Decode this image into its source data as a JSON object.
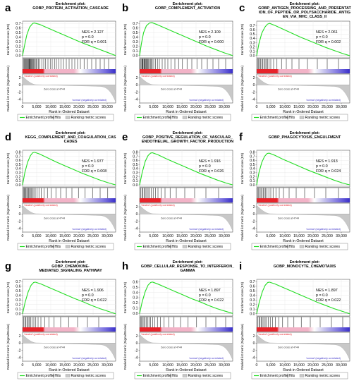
{
  "common": {
    "plot_heading": "Enrichment plot:",
    "es_axis_label": "Enrichment score (ES)",
    "metric_axis_label": "Ranked list metric (Signal2Noise)",
    "x_axis_label": "Rank in Ordered Dataset",
    "legend": [
      "Enrichment profile",
      "Hits",
      "Ranking metric scores"
    ],
    "positive_label": "'treated' (positively correlated)",
    "negative_label": "'normal' (negatively correlated)",
    "zero_cross_label": "Zero cross at 4744",
    "es_ticks": [
      0.0,
      0.1,
      0.2,
      0.3,
      0.4,
      0.5,
      0.6,
      0.7,
      0.8
    ],
    "metric_ticks": [
      2,
      0,
      -2,
      -4
    ],
    "x_ticks": [
      0,
      5000,
      10000,
      15000,
      20000,
      25000,
      30000
    ],
    "x_tick_labels": [
      "0",
      "5,000",
      "10,000",
      "15,000",
      "20,000",
      "25,000",
      "30,000"
    ],
    "colors": {
      "profile": "#22dd22",
      "positive": "#e8222a",
      "pink": "#f2b3c7",
      "negative": "#3a2fc9",
      "metric_fill": "#c8c8c8"
    }
  },
  "chart_data": [
    {
      "type": "line",
      "letter": "a",
      "title": [
        "GOBP_PROTEIN_ACTIVATION_CASCADE"
      ],
      "nes": "NES = 2.127",
      "p": "p = 0.0",
      "fdr": "FDR q = 0.001",
      "es_ylim": [
        -0.05,
        0.75
      ],
      "es_ticks": [
        0.0,
        0.1,
        0.2,
        0.3,
        0.4,
        0.5,
        0.6,
        0.7
      ],
      "profile": [
        [
          0,
          0
        ],
        [
          700,
          0.22
        ],
        [
          1500,
          0.45
        ],
        [
          2500,
          0.62
        ],
        [
          3600,
          0.7
        ],
        [
          4200,
          0.71
        ],
        [
          6000,
          0.68
        ],
        [
          9000,
          0.6
        ],
        [
          12000,
          0.52
        ],
        [
          15000,
          0.44
        ],
        [
          18000,
          0.36
        ],
        [
          21000,
          0.28
        ],
        [
          24000,
          0.21
        ],
        [
          27000,
          0.14
        ],
        [
          30000,
          0.07
        ],
        [
          33000,
          0.0
        ]
      ],
      "hits": [
        300,
        600,
        900,
        1100,
        1400,
        1700,
        1900,
        2100,
        2300,
        2500,
        2700,
        2900,
        3100,
        3300,
        3600,
        3900,
        4200,
        4500,
        4800,
        5200,
        5600,
        6100,
        6800,
        7500,
        8200,
        9000,
        9800,
        10500,
        11300,
        12000,
        12800,
        13600,
        14500,
        15500,
        16500,
        17500,
        18500,
        19500,
        20500,
        21800,
        23000,
        24500,
        26000,
        27500,
        29000,
        30500
      ]
    },
    {
      "type": "line",
      "letter": "b",
      "title": [
        "GOBP_COMPLEMENT_ACTIVATION"
      ],
      "nes": "NES = 2.109",
      "p": "p = 0.0",
      "fdr": "FDR q = 0.000",
      "es_ylim": [
        -0.05,
        0.75
      ],
      "es_ticks": [
        0.0,
        0.1,
        0.2,
        0.3,
        0.4,
        0.5,
        0.6,
        0.7
      ],
      "profile": [
        [
          0,
          0
        ],
        [
          600,
          0.25
        ],
        [
          1400,
          0.5
        ],
        [
          2400,
          0.65
        ],
        [
          3500,
          0.71
        ],
        [
          4300,
          0.72
        ],
        [
          6000,
          0.68
        ],
        [
          9000,
          0.6
        ],
        [
          12000,
          0.52
        ],
        [
          15000,
          0.44
        ],
        [
          18000,
          0.36
        ],
        [
          21000,
          0.28
        ],
        [
          24000,
          0.2
        ],
        [
          27000,
          0.13
        ],
        [
          30000,
          0.06
        ],
        [
          33000,
          0.0
        ]
      ],
      "hits": [
        200,
        500,
        800,
        1000,
        1200,
        1500,
        1700,
        1900,
        2200,
        2400,
        2600,
        2900,
        3200,
        3500,
        3800,
        4100,
        4500,
        5000,
        5600,
        6300,
        7000,
        8000,
        9000,
        10000,
        11200,
        12500,
        13800,
        15200,
        16800,
        18500,
        20300,
        22000,
        24000,
        26000,
        28000,
        30500
      ]
    },
    {
      "type": "line",
      "letter": "c",
      "title": [
        "GOBP_ANTIGEN_PROCESSING_AND_PRESENTAT",
        "ION_OF_PEPTIDE_OR_POLYSACCHARIDE_ANTIG",
        "EN_VIA_MHC_CLASS_II"
      ],
      "nes": "NES = 2.061",
      "p": "p = 0.0",
      "fdr": "FDR q = 0.002",
      "es_ylim": [
        -0.05,
        0.8
      ],
      "es_ticks": [
        0.0,
        0.1,
        0.2,
        0.3,
        0.4,
        0.5,
        0.6,
        0.7
      ],
      "profile": [
        [
          0,
          0
        ],
        [
          800,
          0.28
        ],
        [
          1800,
          0.52
        ],
        [
          2900,
          0.66
        ],
        [
          3800,
          0.73
        ],
        [
          4600,
          0.75
        ],
        [
          6500,
          0.7
        ],
        [
          9500,
          0.61
        ],
        [
          12500,
          0.52
        ],
        [
          15500,
          0.43
        ],
        [
          18500,
          0.35
        ],
        [
          21500,
          0.27
        ],
        [
          24500,
          0.19
        ],
        [
          27500,
          0.12
        ],
        [
          30500,
          0.05
        ],
        [
          33000,
          0.0
        ]
      ],
      "hits": [
        300,
        700,
        1000,
        1400,
        1800,
        2200,
        2600,
        3000,
        3400,
        3900,
        4400,
        5000,
        6000,
        7200,
        8800,
        10500,
        12500,
        15000,
        18000,
        21500,
        25000,
        29000
      ]
    },
    {
      "type": "line",
      "letter": "d",
      "title": [
        "KEGG_COMPLEMENT_AND_COAGULATION_CAS",
        "CADES"
      ],
      "nes": "NES = 1.977",
      "p": "p = 0.0",
      "fdr": "FDR q = 0.008",
      "es_ylim": [
        -0.05,
        0.85
      ],
      "es_ticks": [
        0.0,
        0.1,
        0.2,
        0.3,
        0.4,
        0.5,
        0.6,
        0.7,
        0.8
      ],
      "profile": [
        [
          0,
          0
        ],
        [
          800,
          0.3
        ],
        [
          1800,
          0.56
        ],
        [
          2800,
          0.72
        ],
        [
          3600,
          0.79
        ],
        [
          4300,
          0.8
        ],
        [
          6000,
          0.76
        ],
        [
          9000,
          0.66
        ],
        [
          12000,
          0.56
        ],
        [
          15000,
          0.47
        ],
        [
          18000,
          0.38
        ],
        [
          21000,
          0.29
        ],
        [
          24000,
          0.21
        ],
        [
          27000,
          0.13
        ],
        [
          30000,
          0.06
        ],
        [
          33000,
          0.0
        ]
      ],
      "hits": [
        300,
        600,
        900,
        1200,
        1500,
        1800,
        2100,
        2400,
        2800,
        3200,
        3600,
        4000,
        4500,
        5100,
        5800,
        6600,
        7600,
        8800,
        10200,
        11800,
        13500,
        15500,
        17500,
        19800,
        22200,
        24800,
        27500,
        30200
      ]
    },
    {
      "type": "line",
      "letter": "e",
      "title": [
        "GOBP_POSITIVE_REGULATION_OF_VASCULAR_",
        "ENDOTHELIAL_GROWTH_FACTOR_PRODUCTION"
      ],
      "nes": "NES = 1.916",
      "p": "p = 0.0",
      "fdr": "FDR q = 0.026",
      "es_ylim": [
        -0.05,
        0.85
      ],
      "es_ticks": [
        0.0,
        0.1,
        0.2,
        0.3,
        0.4,
        0.5,
        0.6,
        0.7,
        0.8
      ],
      "profile": [
        [
          0,
          0
        ],
        [
          900,
          0.3
        ],
        [
          2000,
          0.58
        ],
        [
          3000,
          0.72
        ],
        [
          3900,
          0.78
        ],
        [
          4500,
          0.79
        ],
        [
          6500,
          0.74
        ],
        [
          9500,
          0.64
        ],
        [
          12500,
          0.55
        ],
        [
          15500,
          0.46
        ],
        [
          18500,
          0.37
        ],
        [
          21500,
          0.28
        ],
        [
          24500,
          0.2
        ],
        [
          27500,
          0.12
        ],
        [
          30500,
          0.05
        ],
        [
          33000,
          0.0
        ]
      ],
      "hits": [
        400,
        800,
        1200,
        1600,
        2000,
        2500,
        3000,
        3500,
        4100,
        4800,
        5600,
        6500,
        7600,
        9000,
        10800,
        13000,
        16000,
        19500,
        23500,
        28000
      ]
    },
    {
      "type": "line",
      "letter": "f",
      "title": [
        "GOBP_PHAGOCYTOSIS_ENGULFMENT"
      ],
      "nes": "NES = 1.913",
      "p": "p = 0.0",
      "fdr": "FDR q = 0.024",
      "es_ylim": [
        -0.05,
        0.85
      ],
      "es_ticks": [
        0.0,
        0.1,
        0.2,
        0.3,
        0.4,
        0.5,
        0.6,
        0.7,
        0.8
      ],
      "profile": [
        [
          0,
          0
        ],
        [
          800,
          0.3
        ],
        [
          1800,
          0.55
        ],
        [
          2800,
          0.7
        ],
        [
          3700,
          0.77
        ],
        [
          4400,
          0.78
        ],
        [
          6300,
          0.73
        ],
        [
          9300,
          0.63
        ],
        [
          12300,
          0.54
        ],
        [
          15300,
          0.45
        ],
        [
          18300,
          0.36
        ],
        [
          21300,
          0.28
        ],
        [
          24300,
          0.2
        ],
        [
          27300,
          0.12
        ],
        [
          30300,
          0.05
        ],
        [
          33000,
          0.0
        ]
      ],
      "hits": [
        300,
        700,
        1100,
        1500,
        1900,
        2300,
        2700,
        3200,
        3700,
        4300,
        5000,
        5800,
        6800,
        8000,
        9500,
        11500,
        14000,
        17000,
        20500,
        24500,
        29000
      ]
    },
    {
      "type": "line",
      "letter": "g",
      "title": [
        "GOBP_CHEMOKINE-",
        "MEDIATED_SIGNALING_PATHWAY"
      ],
      "nes": "NES = 1.906",
      "p": "p = 0.0",
      "fdr": "FDR q = 0.022",
      "es_ylim": [
        -0.05,
        0.75
      ],
      "es_ticks": [
        0.0,
        0.1,
        0.2,
        0.3,
        0.4,
        0.5,
        0.6,
        0.7
      ],
      "profile": [
        [
          0,
          0
        ],
        [
          900,
          0.25
        ],
        [
          2000,
          0.48
        ],
        [
          3000,
          0.62
        ],
        [
          3900,
          0.68
        ],
        [
          4500,
          0.69
        ],
        [
          6500,
          0.65
        ],
        [
          9500,
          0.57
        ],
        [
          12500,
          0.49
        ],
        [
          15500,
          0.41
        ],
        [
          18500,
          0.33
        ],
        [
          21500,
          0.26
        ],
        [
          24500,
          0.18
        ],
        [
          27500,
          0.11
        ],
        [
          30500,
          0.05
        ],
        [
          33000,
          0.0
        ]
      ],
      "hits": [
        400,
        800,
        1200,
        1600,
        2000,
        2400,
        2900,
        3400,
        4000,
        4700,
        5500,
        6500,
        7800,
        9300,
        11200,
        13500,
        16300,
        19500,
        23000,
        27000
      ]
    },
    {
      "type": "line",
      "letter": "h",
      "title": [
        "GOBP_CELLULAR_RESPONSE_TO_INTERFERON_",
        "GAMMA"
      ],
      "nes": "NES = 1.897",
      "p": "p = 0.0",
      "fdr": "FDR q = 0.022",
      "es_ylim": [
        -0.05,
        0.65
      ],
      "es_ticks": [
        0.0,
        0.1,
        0.2,
        0.3,
        0.4,
        0.5,
        0.6
      ],
      "profile": [
        [
          0,
          0
        ],
        [
          900,
          0.22
        ],
        [
          2000,
          0.42
        ],
        [
          3000,
          0.54
        ],
        [
          3900,
          0.59
        ],
        [
          4500,
          0.6
        ],
        [
          6500,
          0.56
        ],
        [
          9500,
          0.49
        ],
        [
          12500,
          0.42
        ],
        [
          15500,
          0.35
        ],
        [
          18500,
          0.28
        ],
        [
          21500,
          0.22
        ],
        [
          24500,
          0.15
        ],
        [
          27500,
          0.09
        ],
        [
          30500,
          0.04
        ],
        [
          33000,
          0.0
        ]
      ],
      "hits": [
        300,
        700,
        1100,
        1500,
        1900,
        2300,
        2800,
        3300,
        3900,
        4600,
        5400,
        6300,
        7400,
        8700,
        10300,
        12200,
        14500,
        17200,
        20200,
        23500,
        27000,
        30500
      ]
    },
    {
      "type": "line",
      "letter": "i",
      "title": [
        "GOBP_MONOCYTE_CHEMOTAXIS"
      ],
      "nes": "NES = 1.897",
      "p": "p = 0.0",
      "fdr": "FDR q = 0.022",
      "es_ylim": [
        -0.05,
        0.75
      ],
      "es_ticks": [
        0.0,
        0.1,
        0.2,
        0.3,
        0.4,
        0.5,
        0.6,
        0.7
      ],
      "profile": [
        [
          0,
          0
        ],
        [
          900,
          0.25
        ],
        [
          2000,
          0.48
        ],
        [
          3000,
          0.62
        ],
        [
          3900,
          0.68
        ],
        [
          4500,
          0.69
        ],
        [
          6500,
          0.65
        ],
        [
          9500,
          0.57
        ],
        [
          12500,
          0.49
        ],
        [
          15500,
          0.41
        ],
        [
          18500,
          0.33
        ],
        [
          21500,
          0.25
        ],
        [
          24500,
          0.18
        ],
        [
          27500,
          0.11
        ],
        [
          30500,
          0.05
        ],
        [
          33000,
          0.0
        ]
      ],
      "hits": [
        400,
        800,
        1200,
        1600,
        2000,
        2500,
        3000,
        3500,
        4100,
        4800,
        5600,
        6600,
        7800,
        9200,
        11000,
        13200,
        15800,
        19000,
        22500,
        26500,
        30500
      ]
    }
  ]
}
